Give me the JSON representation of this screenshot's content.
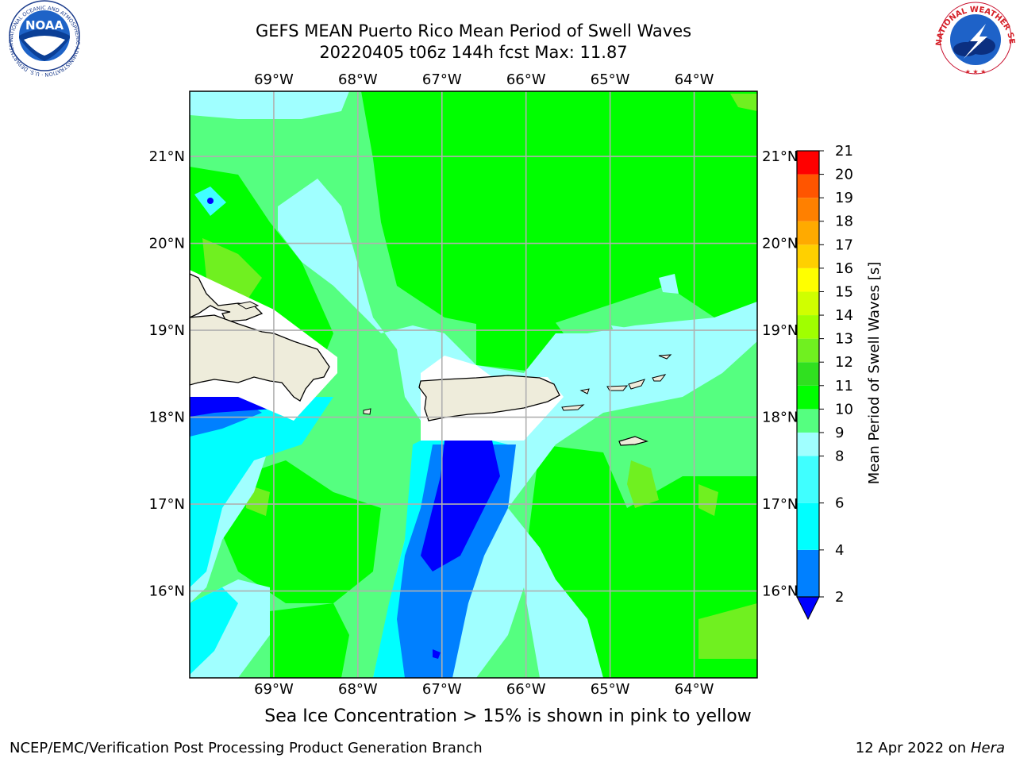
{
  "header": {
    "title_line1": "GEFS MEAN Puerto Rico Mean Period of Swell Waves",
    "title_line2": "20220405 t06z 144h fcst   Max: 11.87"
  },
  "logos": {
    "left": "NOAA",
    "left_ring": "NATIONAL OCEANIC AND ATMOSPHERIC ADMINISTRATION · U.S. DEPARTMENT OF COMMERCE",
    "right_ring": "NATIONAL WEATHER SERVICE"
  },
  "map": {
    "lon_ticks": [
      "69°W",
      "68°W",
      "67°W",
      "66°W",
      "65°W",
      "64°W"
    ],
    "lon_values": [
      -69,
      -68,
      -67,
      -66,
      -65,
      -64
    ],
    "lat_ticks": [
      "21°N",
      "20°N",
      "19°N",
      "18°N",
      "17°N",
      "16°N"
    ],
    "lat_values": [
      21,
      20,
      19,
      18,
      17,
      16
    ],
    "lon_range": [
      -70,
      -63.25
    ],
    "lat_range": [
      15,
      21.75
    ],
    "land_color": "#eeecdb",
    "ocean_dominant_color": "#55ff80"
  },
  "colorbar": {
    "label": "Mean Period of Swell Waves [s]",
    "levels": [
      2,
      3,
      4,
      5,
      6,
      7,
      8,
      9,
      10,
      11,
      12,
      13,
      14,
      15,
      16,
      17,
      18,
      19,
      20,
      21
    ],
    "tick_labels": [
      "2",
      "4",
      "6",
      "8",
      "9",
      "10",
      "11",
      "12",
      "13",
      "14",
      "15",
      "16",
      "17",
      "18",
      "19",
      "20",
      "21"
    ],
    "colors": [
      "#0000ff",
      "#0080ff",
      "#00e0ff",
      "#00ffff",
      "#40ffff",
      "#60ffff",
      "#a0ffff",
      "#55ff80",
      "#00ff00",
      "#20ee10",
      "#70f020",
      "#a0ff00",
      "#d0ff00",
      "#e8ff00",
      "#ffff00",
      "#ffd000",
      "#ffaa00",
      "#ff8000",
      "#ff5500",
      "#ff2a00",
      "#ff0000"
    ],
    "under_color": "#0000ff"
  },
  "note": "Sea Ice Concentration > 15% is shown in pink to yellow",
  "footer": {
    "left": "NCEP/EMC/Verification Post Processing Product Generation Branch",
    "right_date": "12 Apr 2022 on",
    "right_host": "Hera"
  }
}
